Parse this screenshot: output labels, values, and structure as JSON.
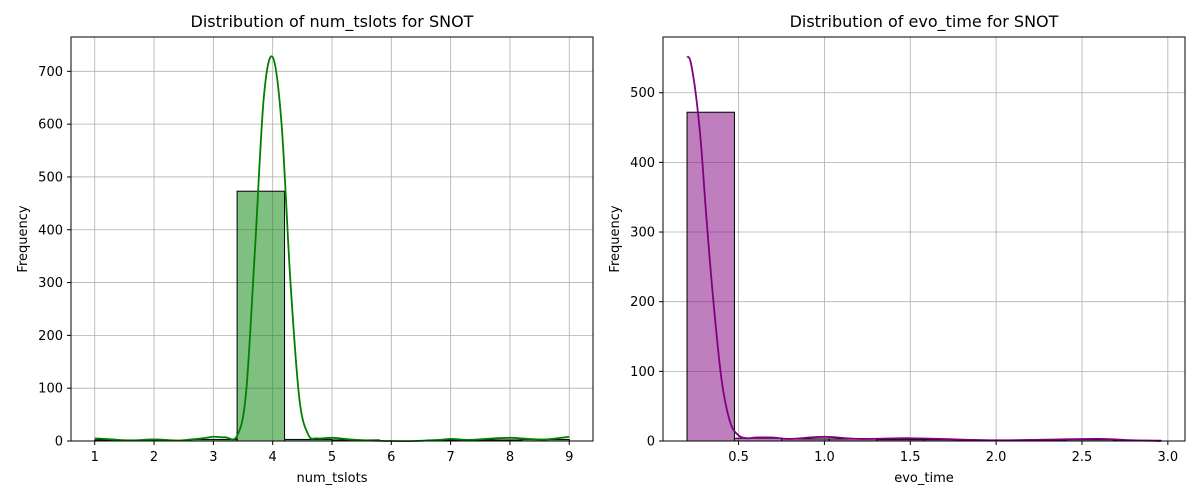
{
  "chart_data": [
    {
      "type": "bar",
      "title": "Distribution of num_tslots for SNOT",
      "xlabel": "num_tslots",
      "ylabel": "Frequency",
      "xlim": [
        0.6,
        9.4
      ],
      "ylim": [
        0,
        765
      ],
      "xticks": [
        1,
        2,
        3,
        4,
        5,
        6,
        7,
        8,
        9
      ],
      "yticks": [
        0,
        100,
        200,
        300,
        400,
        500,
        600,
        700
      ],
      "grid": true,
      "bar_color": "#008000",
      "line_color": "#008000",
      "bins": [
        {
          "x0": 1.0,
          "x1": 1.8,
          "value": 2
        },
        {
          "x0": 1.8,
          "x1": 2.6,
          "value": 1
        },
        {
          "x0": 2.6,
          "x1": 3.4,
          "value": 3
        },
        {
          "x0": 3.4,
          "x1": 4.2,
          "value": 473
        },
        {
          "x0": 4.2,
          "x1": 5.0,
          "value": 3
        },
        {
          "x0": 5.0,
          "x1": 5.8,
          "value": 2
        },
        {
          "x0": 5.8,
          "x1": 6.6,
          "value": 0
        },
        {
          "x0": 6.6,
          "x1": 7.4,
          "value": 2
        },
        {
          "x0": 7.4,
          "x1": 8.2,
          "value": 2
        },
        {
          "x0": 8.2,
          "x1": 9.0,
          "value": 3
        }
      ],
      "kde": {
        "x": [
          1.0,
          1.3,
          1.6,
          2.0,
          2.4,
          2.8,
          3.0,
          3.2,
          3.4,
          3.55,
          3.7,
          3.85,
          4.0,
          4.15,
          4.3,
          4.45,
          4.6,
          4.75,
          5.0,
          5.3,
          5.6,
          6.0,
          6.4,
          6.8,
          7.0,
          7.3,
          7.6,
          8.0,
          8.3,
          8.6,
          9.0
        ],
        "y": [
          5,
          3,
          1,
          3,
          1,
          5,
          8,
          7,
          10,
          90,
          360,
          650,
          727,
          600,
          300,
          80,
          12,
          5,
          6,
          3,
          1,
          0,
          0,
          2,
          4,
          2,
          4,
          6,
          4,
          3,
          8
        ]
      }
    },
    {
      "type": "bar",
      "title": "Distribution of evo_time for SNOT",
      "xlabel": "evo_time",
      "ylabel": "Frequency",
      "xlim": [
        0.06,
        3.1
      ],
      "ylim": [
        0,
        580
      ],
      "xticks": [
        0.5,
        1.0,
        1.5,
        2.0,
        2.5,
        3.0
      ],
      "xticklabels": [
        "0.5",
        "1.0",
        "1.5",
        "2.0",
        "2.5",
        "3.0"
      ],
      "yticks": [
        0,
        100,
        200,
        300,
        400,
        500
      ],
      "grid": true,
      "bar_color": "#800080",
      "line_color": "#800080",
      "bins": [
        {
          "x0": 0.2,
          "x1": 0.476,
          "value": 472
        },
        {
          "x0": 0.476,
          "x1": 0.752,
          "value": 4
        },
        {
          "x0": 0.752,
          "x1": 1.028,
          "value": 3
        },
        {
          "x0": 1.028,
          "x1": 1.304,
          "value": 3
        },
        {
          "x0": 1.304,
          "x1": 1.58,
          "value": 2
        },
        {
          "x0": 1.58,
          "x1": 1.856,
          "value": 2
        },
        {
          "x0": 1.856,
          "x1": 2.132,
          "value": 1
        },
        {
          "x0": 2.132,
          "x1": 2.408,
          "value": 1
        },
        {
          "x0": 2.408,
          "x1": 2.684,
          "value": 2
        },
        {
          "x0": 2.684,
          "x1": 2.96,
          "value": 1
        }
      ],
      "kde": {
        "x": [
          0.2,
          0.22,
          0.25,
          0.28,
          0.31,
          0.35,
          0.4,
          0.45,
          0.5,
          0.55,
          0.6,
          0.7,
          0.8,
          1.0,
          1.2,
          1.5,
          1.8,
          2.0,
          2.3,
          2.6,
          2.8,
          2.96
        ],
        "y": [
          552,
          545,
          500,
          430,
          330,
          210,
          90,
          28,
          8,
          4,
          5,
          5,
          3,
          6,
          3,
          4,
          2,
          1,
          2,
          3,
          1,
          0
        ]
      }
    }
  ]
}
